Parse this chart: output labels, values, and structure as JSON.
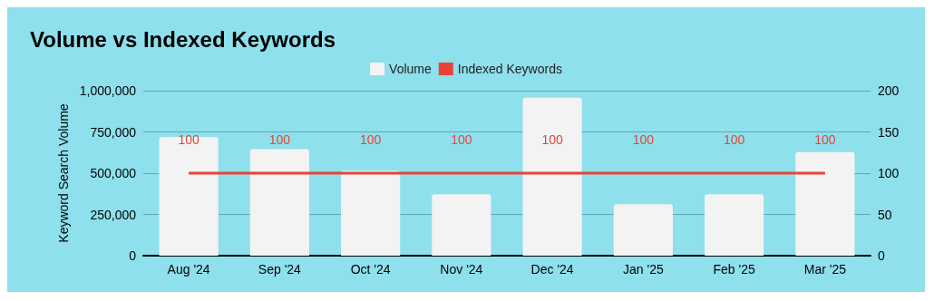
{
  "chart_data": {
    "type": "bar",
    "title": "Volume vs Indexed Keywords",
    "ylabel": "Keyword Search Volume",
    "categories": [
      "Aug '24",
      "Sep '24",
      "Oct '24",
      "Nov '24",
      "Dec '24",
      "Jan '25",
      "Feb '25",
      "Mar '25"
    ],
    "series": [
      {
        "name": "Volume",
        "color": "#f3f3f3",
        "values": [
          720000,
          645000,
          515000,
          372000,
          957000,
          312000,
          372000,
          628000
        ]
      },
      {
        "name": "Indexed Keywords",
        "type": "line",
        "axis": "y2",
        "color": "#ea4335",
        "values": [
          100,
          100,
          100,
          100,
          100,
          100,
          100,
          100
        ],
        "data_labels": true
      }
    ],
    "ylim": [
      0,
      1000000
    ],
    "yticks": [
      0,
      {
        "value": 250000,
        "label": "250,000"
      },
      {
        "value": 500000,
        "label": "500,000"
      },
      {
        "value": 750000,
        "label": "750,000"
      },
      {
        "value": 1000000,
        "label": "1,000,000"
      }
    ],
    "y2lim": [
      0,
      200
    ],
    "y2ticks": [
      0,
      50,
      100,
      150,
      200
    ],
    "grid": "y",
    "legend": "top",
    "marker": "none"
  }
}
